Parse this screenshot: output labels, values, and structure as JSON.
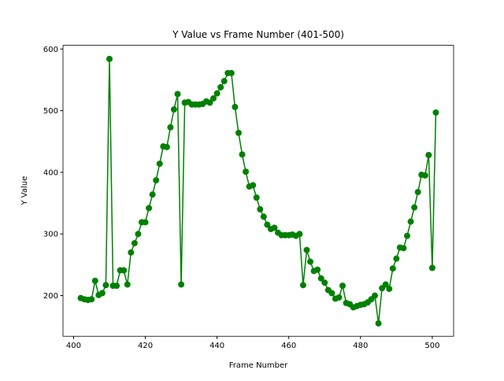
{
  "chart_data": {
    "type": "line",
    "title": "Y Value vs Frame Number (401-500)",
    "xlabel": "Frame Number",
    "ylabel": "Y Value",
    "x": [
      402,
      403,
      404,
      405,
      406,
      407,
      408,
      409,
      410,
      411,
      412,
      413,
      414,
      415,
      416,
      417,
      418,
      419,
      420,
      421,
      422,
      423,
      424,
      425,
      426,
      427,
      428,
      429,
      430,
      431,
      432,
      433,
      434,
      435,
      436,
      437,
      438,
      439,
      440,
      441,
      442,
      443,
      444,
      445,
      446,
      447,
      448,
      449,
      450,
      451,
      452,
      453,
      454,
      455,
      456,
      457,
      458,
      459,
      460,
      461,
      462,
      463,
      464,
      465,
      466,
      467,
      468,
      469,
      470,
      471,
      472,
      473,
      474,
      475,
      476,
      477,
      478,
      479,
      480,
      481,
      482,
      483,
      484,
      485,
      486,
      487,
      488,
      489,
      490,
      491,
      492,
      493,
      494,
      495,
      496,
      497,
      498,
      499,
      500,
      501
    ],
    "series": [
      {
        "name": "Y Value",
        "color": "#008000",
        "values": [
          196,
          194,
          193,
          194,
          224,
          201,
          204,
          217,
          584,
          216,
          216,
          241,
          241,
          218,
          270,
          285,
          300,
          319,
          319,
          342,
          364,
          387,
          414,
          442,
          441,
          473,
          502,
          527,
          218,
          513,
          514,
          510,
          510,
          510,
          511,
          515,
          513,
          520,
          528,
          538,
          548,
          561,
          561,
          506,
          464,
          429,
          401,
          377,
          379,
          359,
          340,
          328,
          315,
          308,
          310,
          302,
          298,
          298,
          298,
          299,
          297,
          300,
          217,
          274,
          255,
          240,
          242,
          228,
          221,
          209,
          204,
          195,
          197,
          216,
          188,
          186,
          181,
          183,
          185,
          186,
          189,
          194,
          200,
          155,
          212,
          218,
          211,
          244,
          260,
          278,
          277,
          297,
          320,
          343,
          368,
          396,
          395,
          428,
          245,
          497
        ]
      }
    ],
    "xlim": [
      397.05,
      505.95
    ],
    "ylim": [
      134,
      606
    ],
    "xticks": [
      400,
      420,
      440,
      460,
      480,
      500
    ],
    "yticks": [
      200,
      300,
      400,
      500,
      600
    ]
  }
}
